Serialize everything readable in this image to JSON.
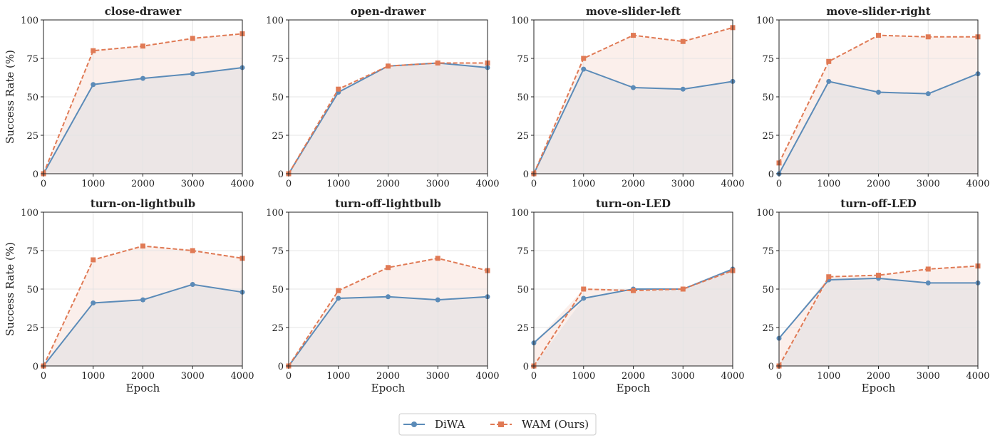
{
  "colors": {
    "DiWA": "#5b8bb8",
    "WAM": "#e07a55",
    "fill_base": "#ece6e6",
    "fill_gap": "#fbefeb",
    "grid": "#e4e4e4",
    "axis": "#222222"
  },
  "legend": {
    "placement": "bottom-center",
    "entries": [
      {
        "label": "DiWA",
        "marker": "circle",
        "linestyle": "solid"
      },
      {
        "label": "WAM (Ours)",
        "marker": "square",
        "linestyle": "dashed"
      }
    ]
  },
  "chart_data": [
    {
      "type": "line",
      "title": "close-drawer",
      "xlabel": "",
      "ylabel": "Success Rate (%)",
      "x": [
        0,
        1000,
        2000,
        3000,
        4000
      ],
      "xticks": [
        0,
        1000,
        2000,
        3000,
        4000
      ],
      "yticks": [
        0,
        25,
        50,
        75,
        100
      ],
      "xlim": [
        0,
        4000
      ],
      "ylim": [
        0,
        100
      ],
      "grid": true,
      "series": [
        {
          "name": "DiWA",
          "values": [
            0,
            58,
            62,
            65,
            69
          ]
        },
        {
          "name": "WAM (Ours)",
          "values": [
            0,
            80,
            83,
            88,
            91
          ]
        }
      ]
    },
    {
      "type": "line",
      "title": "open-drawer",
      "xlabel": "",
      "ylabel": "",
      "x": [
        0,
        1000,
        2000,
        3000,
        4000
      ],
      "xticks": [
        0,
        1000,
        2000,
        3000,
        4000
      ],
      "yticks": [
        0,
        25,
        50,
        75,
        100
      ],
      "xlim": [
        0,
        4000
      ],
      "ylim": [
        0,
        100
      ],
      "grid": true,
      "series": [
        {
          "name": "DiWA",
          "values": [
            0,
            53,
            70,
            72,
            69
          ]
        },
        {
          "name": "WAM (Ours)",
          "values": [
            0,
            55,
            70,
            72,
            72
          ]
        }
      ]
    },
    {
      "type": "line",
      "title": "move-slider-left",
      "xlabel": "",
      "ylabel": "",
      "x": [
        0,
        1000,
        2000,
        3000,
        4000
      ],
      "xticks": [
        0,
        1000,
        2000,
        3000,
        4000
      ],
      "yticks": [
        0,
        25,
        50,
        75,
        100
      ],
      "xlim": [
        0,
        4000
      ],
      "ylim": [
        0,
        100
      ],
      "grid": true,
      "series": [
        {
          "name": "DiWA",
          "values": [
            0,
            68,
            56,
            55,
            60
          ]
        },
        {
          "name": "WAM (Ours)",
          "values": [
            0,
            75,
            90,
            86,
            95
          ]
        }
      ]
    },
    {
      "type": "line",
      "title": "move-slider-right",
      "xlabel": "",
      "ylabel": "",
      "x": [
        0,
        1000,
        2000,
        3000,
        4000
      ],
      "xticks": [
        0,
        1000,
        2000,
        3000,
        4000
      ],
      "yticks": [
        0,
        25,
        50,
        75,
        100
      ],
      "xlim": [
        0,
        4000
      ],
      "ylim": [
        0,
        100
      ],
      "grid": true,
      "series": [
        {
          "name": "DiWA",
          "values": [
            0,
            60,
            53,
            52,
            65
          ]
        },
        {
          "name": "WAM (Ours)",
          "values": [
            7,
            73,
            90,
            89,
            89
          ]
        }
      ]
    },
    {
      "type": "line",
      "title": "turn-on-lightbulb",
      "xlabel": "Epoch",
      "ylabel": "Success Rate (%)",
      "x": [
        0,
        1000,
        2000,
        3000,
        4000
      ],
      "xticks": [
        0,
        1000,
        2000,
        3000,
        4000
      ],
      "yticks": [
        0,
        25,
        50,
        75,
        100
      ],
      "xlim": [
        0,
        4000
      ],
      "ylim": [
        0,
        100
      ],
      "grid": true,
      "series": [
        {
          "name": "DiWA",
          "values": [
            0,
            41,
            43,
            53,
            48
          ]
        },
        {
          "name": "WAM (Ours)",
          "values": [
            0,
            69,
            78,
            75,
            70
          ]
        }
      ]
    },
    {
      "type": "line",
      "title": "turn-off-lightbulb",
      "xlabel": "Epoch",
      "ylabel": "",
      "x": [
        0,
        1000,
        2000,
        3000,
        4000
      ],
      "xticks": [
        0,
        1000,
        2000,
        3000,
        4000
      ],
      "yticks": [
        0,
        25,
        50,
        75,
        100
      ],
      "xlim": [
        0,
        4000
      ],
      "ylim": [
        0,
        100
      ],
      "grid": true,
      "series": [
        {
          "name": "DiWA",
          "values": [
            0,
            44,
            45,
            43,
            45
          ]
        },
        {
          "name": "WAM (Ours)",
          "values": [
            0,
            49,
            64,
            70,
            62
          ]
        }
      ]
    },
    {
      "type": "line",
      "title": "turn-on-LED",
      "xlabel": "Epoch",
      "ylabel": "",
      "x": [
        0,
        1000,
        2000,
        3000,
        4000
      ],
      "xticks": [
        0,
        1000,
        2000,
        3000,
        4000
      ],
      "yticks": [
        0,
        25,
        50,
        75,
        100
      ],
      "xlim": [
        0,
        4000
      ],
      "ylim": [
        0,
        100
      ],
      "grid": true,
      "series": [
        {
          "name": "DiWA",
          "values": [
            15,
            44,
            50,
            50,
            63
          ]
        },
        {
          "name": "WAM (Ours)",
          "values": [
            0,
            50,
            49,
            50,
            62
          ]
        }
      ]
    },
    {
      "type": "line",
      "title": "turn-off-LED",
      "xlabel": "Epoch",
      "ylabel": "",
      "x": [
        0,
        1000,
        2000,
        3000,
        4000
      ],
      "xticks": [
        0,
        1000,
        2000,
        3000,
        4000
      ],
      "yticks": [
        0,
        25,
        50,
        75,
        100
      ],
      "xlim": [
        0,
        4000
      ],
      "ylim": [
        0,
        100
      ],
      "grid": true,
      "series": [
        {
          "name": "DiWA",
          "values": [
            18,
            56,
            57,
            54,
            54
          ]
        },
        {
          "name": "WAM (Ours)",
          "values": [
            0,
            58,
            59,
            63,
            65
          ]
        }
      ]
    }
  ]
}
